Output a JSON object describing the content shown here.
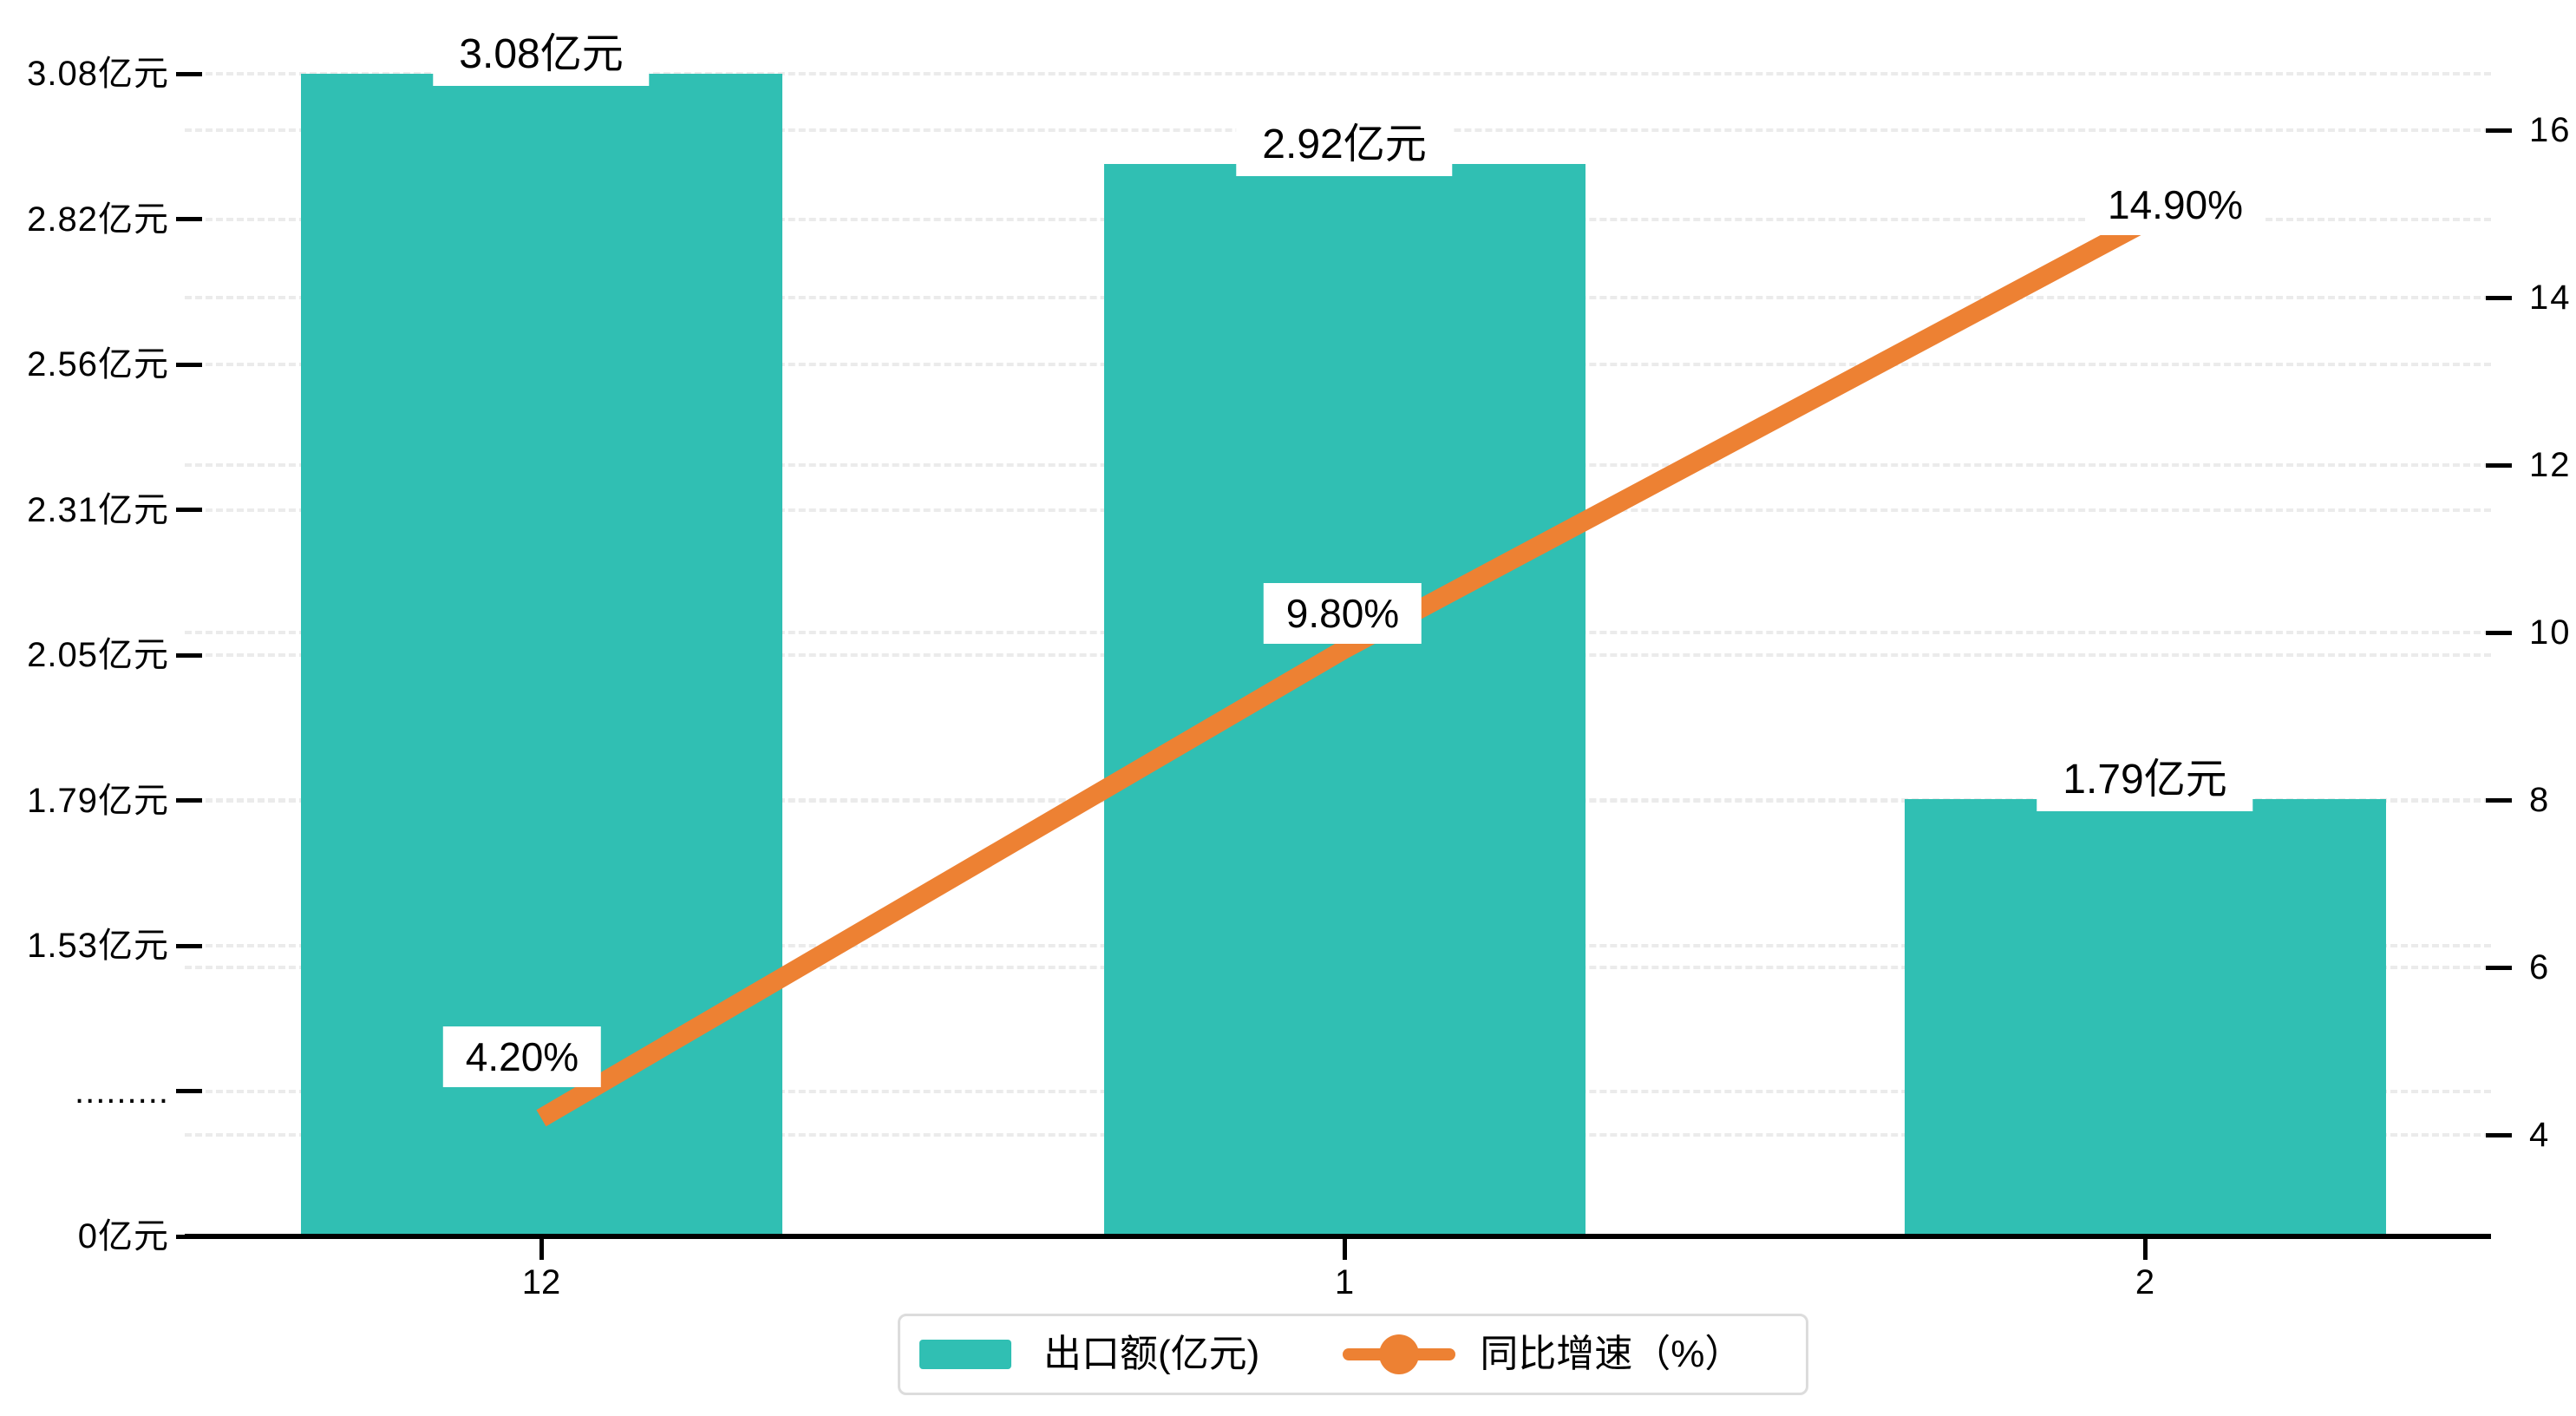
{
  "chart_data": {
    "type": "combo-bar-line",
    "categories": [
      "12",
      "1",
      "2"
    ],
    "series": [
      {
        "name": "出口额(亿元)",
        "type": "bar",
        "axis": "left",
        "values": [
          3.08,
          2.92,
          1.79
        ],
        "labels": [
          "3.08亿元",
          "2.92亿元",
          "1.79亿元"
        ],
        "color": "#30BFB3"
      },
      {
        "name": "同比增速（%）",
        "type": "line",
        "axis": "right",
        "values": [
          4.2,
          9.8,
          14.9
        ],
        "labels": [
          "4.20%",
          "9.80%",
          "14.90%"
        ],
        "color": "#ED8133"
      }
    ],
    "left_axis": {
      "tick_labels": [
        "3.08亿元",
        "2.82亿元",
        "2.56亿元",
        "2.31亿元",
        "2.05亿元",
        "1.79亿元",
        "1.53亿元",
        ".........",
        "0亿元"
      ],
      "tick_values": [
        3.08,
        2.82,
        2.56,
        2.31,
        2.05,
        1.79,
        1.53,
        null,
        0
      ],
      "note_break_tick": ".........",
      "min_shown": 0,
      "max_shown": 3.08
    },
    "right_axis": {
      "tick_labels": [
        "16",
        "14",
        "12",
        "10",
        "8",
        "6",
        "4"
      ],
      "tick_values": [
        16,
        14,
        12,
        10,
        8,
        6,
        4
      ],
      "min": 4,
      "max": 16
    },
    "x_axis": {
      "tick_labels": [
        "12",
        "1",
        "2"
      ]
    },
    "legend": {
      "items": [
        {
          "label": "出口额(亿元)",
          "marker": "bar",
          "color": "#30BFB3"
        },
        {
          "label": "同比增速（%）",
          "marker": "line-dot",
          "color": "#ED8133"
        }
      ],
      "position": "bottom-center"
    },
    "grid": true,
    "gridline_color": "#ebebeb",
    "background": "#ffffff"
  }
}
